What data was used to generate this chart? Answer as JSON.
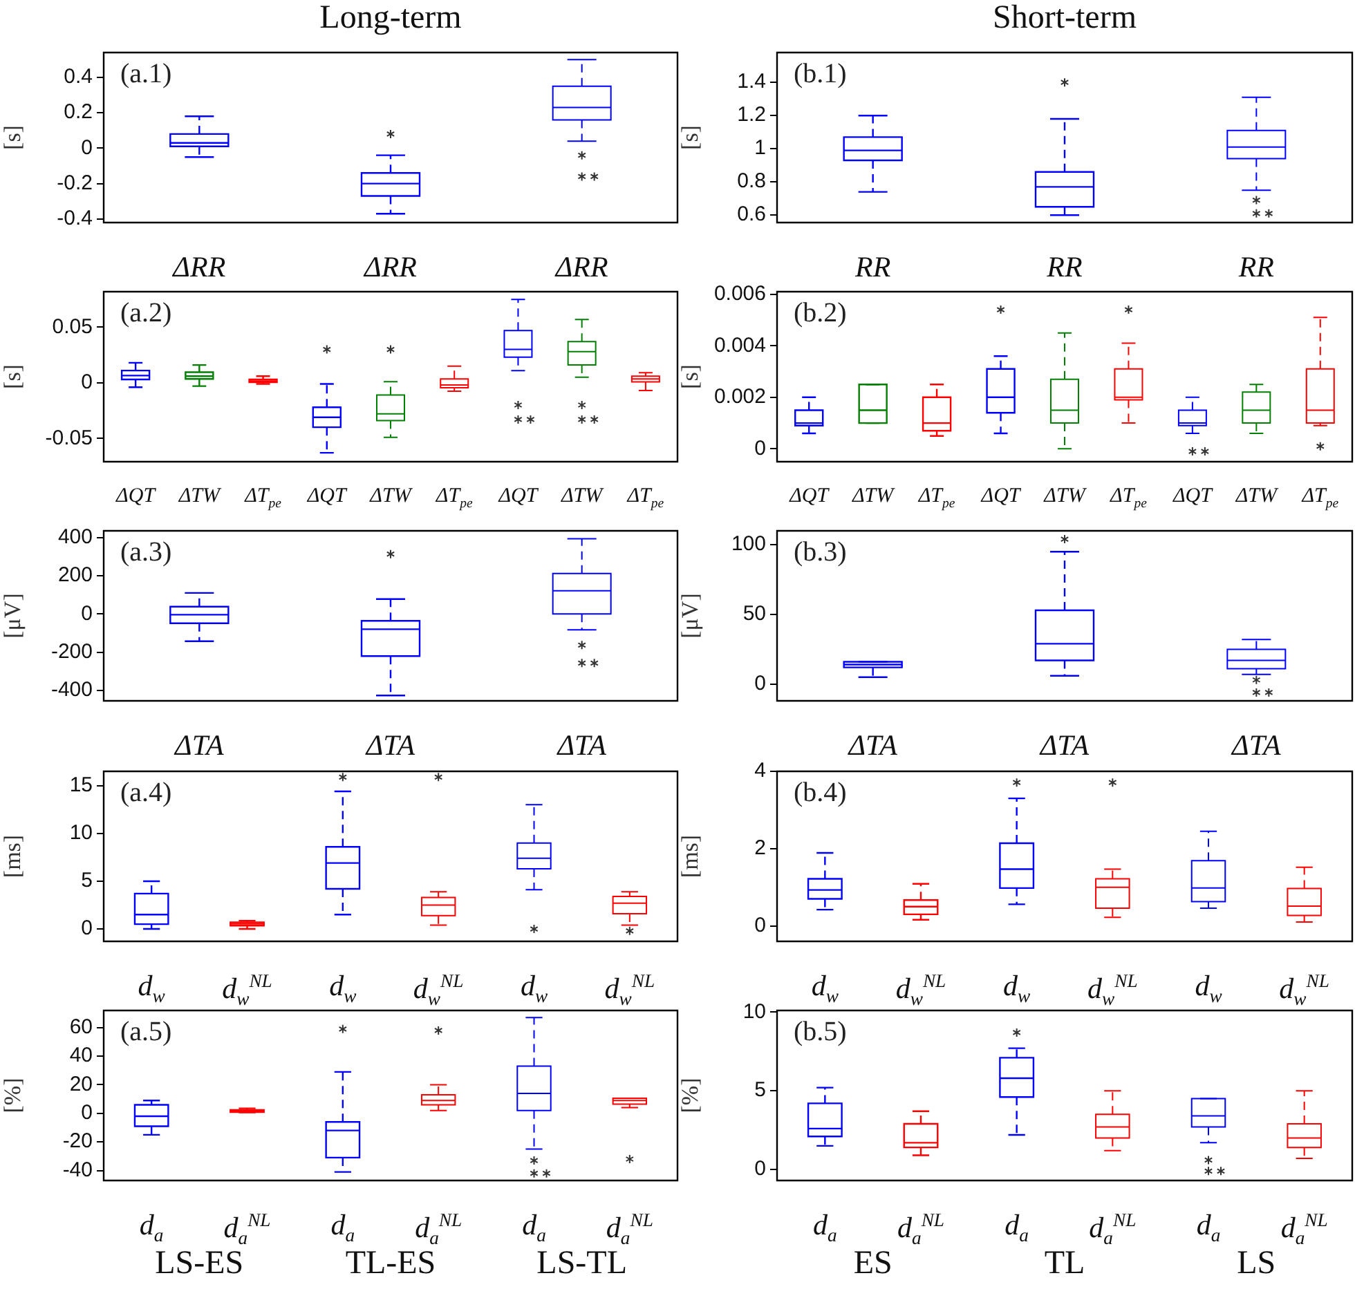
{
  "chart_data": [
    {
      "type": "box",
      "title": "Long-term",
      "ylabel": "[s]",
      "annotations": [
        "(a.1)"
      ],
      "line_style": "dashed",
      "categories": [
        "ΔRR",
        "ΔRR",
        "ΔRR"
      ],
      "colors": [
        "#0000ff",
        "#0000ff",
        "#0000ff"
      ],
      "ylim": [
        -0.42,
        0.54
      ],
      "yticks": [
        -0.4,
        -0.2,
        0,
        0.2,
        0.4
      ],
      "boxes": [
        {
          "low": -0.05,
          "q1": 0.01,
          "median": 0.03,
          "q3": 0.08,
          "high": 0.18
        },
        {
          "low": -0.37,
          "q1": -0.27,
          "median": -0.2,
          "q3": -0.14,
          "high": -0.04,
          "outliers": [
            0.08
          ]
        },
        {
          "low": 0.04,
          "q1": 0.16,
          "median": 0.23,
          "q3": 0.35,
          "high": 0.5,
          "outliers": [
            -0.04,
            -0.16,
            -0.16
          ]
        }
      ]
    },
    {
      "type": "box",
      "title": "Short-term",
      "ylabel": "[s]",
      "annotations": [
        "(b.1)"
      ],
      "line_style": "dashed",
      "categories": [
        "RR",
        "RR",
        "RR"
      ],
      "colors": [
        "#0000ff",
        "#0000ff",
        "#0000ff"
      ],
      "ylim": [
        0.555,
        1.58
      ],
      "yticks": [
        0.6,
        0.8,
        1,
        1.2,
        1.4
      ],
      "boxes": [
        {
          "low": 0.74,
          "q1": 0.93,
          "median": 0.99,
          "q3": 1.07,
          "high": 1.2
        },
        {
          "low": 0.6,
          "q1": 0.65,
          "median": 0.77,
          "q3": 0.86,
          "high": 1.18,
          "outliers": [
            1.4
          ]
        },
        {
          "low": 0.75,
          "q1": 0.94,
          "median": 1.01,
          "q3": 1.11,
          "high": 1.31,
          "outliers": [
            0.69,
            0.61,
            0.61
          ]
        }
      ]
    },
    {
      "type": "box",
      "ylabel": "[s]",
      "annotations": [
        "(a.2)"
      ],
      "line_style": "dashed",
      "categories": [
        "ΔQT",
        "ΔTW",
        "ΔT$_{pe}$",
        "ΔQT",
        "ΔTW",
        "ΔT$_{pe}$",
        "ΔQT",
        "ΔTW",
        "ΔT$_{pe}$"
      ],
      "colors": [
        "#0000ff",
        "#008000",
        "#ff0000",
        "#0000ff",
        "#008000",
        "#ff0000",
        "#0000ff",
        "#008000",
        "#ff0000"
      ],
      "ylim": [
        -0.071,
        0.082
      ],
      "yticks": [
        -0.05,
        0,
        0.05
      ],
      "boxes": [
        {
          "low": -0.004,
          "q1": 0.003,
          "median": 0.0065,
          "q3": 0.011,
          "high": 0.018
        },
        {
          "low": -0.003,
          "q1": 0.0035,
          "median": 0.006,
          "q3": 0.0095,
          "high": 0.016
        },
        {
          "low": -0.001,
          "q1": 0.0005,
          "median": 0.0015,
          "q3": 0.003,
          "high": 0.006
        },
        {
          "low": -0.063,
          "q1": -0.04,
          "median": -0.031,
          "q3": -0.022,
          "high": -0.001,
          "outliers": [
            0.03
          ]
        },
        {
          "low": -0.049,
          "q1": -0.034,
          "median": -0.028,
          "q3": -0.011,
          "high": 0.001,
          "outliers": [
            0.03
          ]
        },
        {
          "low": -0.0075,
          "q1": -0.0045,
          "median": -0.002,
          "q3": 0.0035,
          "high": 0.015
        },
        {
          "low": 0.011,
          "q1": 0.023,
          "median": 0.03,
          "q3": 0.047,
          "high": 0.075,
          "outliers": [
            -0.02,
            -0.033,
            -0.033
          ]
        },
        {
          "low": 0.005,
          "q1": 0.016,
          "median": 0.028,
          "q3": 0.037,
          "high": 0.057,
          "outliers": [
            -0.02,
            -0.033,
            -0.033
          ]
        },
        {
          "low": -0.007,
          "q1": 0.0008,
          "median": 0.0035,
          "q3": 0.006,
          "high": 0.009
        }
      ]
    },
    {
      "type": "box",
      "ylabel": "[s]",
      "annotations": [
        "(b.2)"
      ],
      "line_style": "dashed",
      "categories": [
        "ΔQT",
        "ΔTW",
        "ΔT$_{pe}$",
        "ΔQT",
        "ΔTW",
        "ΔT$_{pe}$",
        "ΔQT",
        "ΔTW",
        "ΔT$_{pe}$"
      ],
      "colors": [
        "#0000ff",
        "#008000",
        "#ff0000",
        "#0000ff",
        "#008000",
        "#ff0000",
        "#0000ff",
        "#008000",
        "#ff0000"
      ],
      "ylim": [
        -0.0005,
        0.0061
      ],
      "yticks": [
        0,
        0.002,
        0.004,
        0.006
      ],
      "boxes": [
        {
          "low": 0.0006,
          "q1": 0.0009,
          "median": 0.001,
          "q3": 0.0015,
          "high": 0.002
        },
        {
          "low": 0.001,
          "q1": 0.001,
          "median": 0.0015,
          "q3": 0.0025,
          "high": 0.0025
        },
        {
          "low": 0.0005,
          "q1": 0.0007,
          "median": 0.001,
          "q3": 0.002,
          "high": 0.0025
        },
        {
          "low": 0.0006,
          "q1": 0.0014,
          "median": 0.002,
          "q3": 0.0031,
          "high": 0.0036,
          "outliers": [
            0.0054
          ]
        },
        {
          "low": 0,
          "q1": 0.001,
          "median": 0.0015,
          "q3": 0.0027,
          "high": 0.0045
        },
        {
          "low": 0.001,
          "q1": 0.0019,
          "median": 0.002,
          "q3": 0.0031,
          "high": 0.0041,
          "outliers": [
            0.0054
          ]
        },
        {
          "low": 0.0006,
          "q1": 0.0009,
          "median": 0.001,
          "q3": 0.0015,
          "high": 0.002,
          "outliers": [
            -0.0001,
            -0.0001
          ]
        },
        {
          "low": 0.0006,
          "q1": 0.001,
          "median": 0.0015,
          "q3": 0.0022,
          "high": 0.0025
        },
        {
          "low": 0.0009,
          "q1": 0.001,
          "median": 0.0015,
          "q3": 0.0031,
          "high": 0.0051,
          "outliers": [
            0.0001
          ]
        }
      ]
    },
    {
      "type": "box",
      "ylabel": "[μV]",
      "annotations": [
        "(a.3)"
      ],
      "line_style": "dashed",
      "categories": [
        "ΔTA",
        "ΔTA",
        "ΔTA"
      ],
      "colors": [
        "#0000ff",
        "#0000ff",
        "#0000ff"
      ],
      "ylim": [
        -455,
        435
      ],
      "yticks": [
        -400,
        -200,
        0,
        200,
        400
      ],
      "boxes": [
        {
          "low": -143,
          "q1": -49,
          "median": -4,
          "q3": 38,
          "high": 110
        },
        {
          "low": -427,
          "q1": -221,
          "median": -80,
          "q3": -36,
          "high": 78,
          "outliers": [
            313
          ]
        },
        {
          "low": -83,
          "q1": 0,
          "median": 121,
          "q3": 212,
          "high": 393,
          "outliers": [
            -163,
            -257,
            -257
          ]
        }
      ]
    },
    {
      "type": "box",
      "ylabel": "[μV]",
      "annotations": [
        "(b.3)"
      ],
      "line_style": "dashed",
      "categories": [
        "ΔTA",
        "ΔTA",
        "ΔTA"
      ],
      "colors": [
        "#0000ff",
        "#0000ff",
        "#0000ff"
      ],
      "ylim": [
        -12,
        110
      ],
      "yticks": [
        0,
        50,
        100
      ],
      "boxes": [
        {
          "low": 5,
          "q1": 12,
          "median": 14,
          "q3": 16,
          "high": 16
        },
        {
          "low": 6,
          "q1": 17,
          "median": 29,
          "q3": 53,
          "high": 95,
          "outliers": [
            104
          ]
        },
        {
          "low": 7,
          "q1": 11,
          "median": 17,
          "q3": 25,
          "high": 32,
          "outliers": [
            3,
            -6,
            -6
          ]
        }
      ]
    },
    {
      "type": "box",
      "ylabel": "[ms]",
      "annotations": [
        "(a.4)"
      ],
      "line_style": "dashed",
      "categories": [
        "d$_{w}$",
        "d$_{w}$$^{NL}$",
        "d$_{w}$",
        "d$_{w}$$^{NL}$",
        "d$_{w}$",
        "d$_{w}$$^{NL}$"
      ],
      "colors": [
        "#0000ff",
        "#ff0000",
        "#0000ff",
        "#ff0000",
        "#0000ff",
        "#ff0000"
      ],
      "ylim": [
        -1.3,
        16.5
      ],
      "yticks": [
        0,
        5,
        10,
        15
      ],
      "boxes": [
        {
          "low": 0,
          "q1": 0.5,
          "median": 1.5,
          "q3": 3.7,
          "high": 5
        },
        {
          "low": 0,
          "q1": 0.35,
          "median": 0.55,
          "q3": 0.7,
          "high": 0.85
        },
        {
          "low": 1.5,
          "q1": 4.2,
          "median": 6.9,
          "q3": 8.6,
          "high": 14.4,
          "outliers": [
            15.9
          ]
        },
        {
          "low": 0.4,
          "q1": 1.4,
          "median": 2.5,
          "q3": 3.3,
          "high": 3.9,
          "outliers": [
            15.9
          ]
        },
        {
          "low": 4.1,
          "q1": 6.3,
          "median": 7.4,
          "q3": 9,
          "high": 13,
          "outliers": [
            0
          ]
        },
        {
          "low": 0.4,
          "q1": 1.6,
          "median": 2.7,
          "q3": 3.4,
          "high": 3.9,
          "outliers": [
            -0.2
          ]
        }
      ]
    },
    {
      "type": "box",
      "ylabel": "[ms]",
      "annotations": [
        "(b.4)"
      ],
      "line_style": "dashed",
      "categories": [
        "d$_{w}$",
        "d$_{w}$$^{NL}$",
        "d$_{w}$",
        "d$_{w}$$^{NL}$",
        "d$_{w}$",
        "d$_{w}$$^{NL}$"
      ],
      "colors": [
        "#0000ff",
        "#ff0000",
        "#0000ff",
        "#ff0000",
        "#0000ff",
        "#ff0000"
      ],
      "ylim": [
        -0.4,
        4
      ],
      "yticks": [
        0,
        2,
        4
      ],
      "boxes": [
        {
          "low": 0.42,
          "q1": 0.7,
          "median": 0.93,
          "q3": 1.22,
          "high": 1.89
        },
        {
          "low": 0.16,
          "q1": 0.3,
          "median": 0.5,
          "q3": 0.67,
          "high": 1.09
        },
        {
          "low": 0.56,
          "q1": 0.98,
          "median": 1.47,
          "q3": 2.14,
          "high": 3.3,
          "outliers": [
            3.71
          ]
        },
        {
          "low": 0.22,
          "q1": 0.46,
          "median": 1.0,
          "q3": 1.22,
          "high": 1.47,
          "outliers": [
            3.71
          ]
        },
        {
          "low": 0.46,
          "q1": 0.63,
          "median": 0.98,
          "q3": 1.69,
          "high": 2.45
        },
        {
          "low": 0.1,
          "q1": 0.27,
          "median": 0.51,
          "q3": 0.97,
          "high": 1.52
        }
      ]
    },
    {
      "type": "box",
      "ylabel": "[%]",
      "annotations": [
        "(a.5)",
        "LS-ES",
        "TL-ES",
        "LS-TL"
      ],
      "line_style": "dashed",
      "categories": [
        "d$_{a}$",
        "d$_{a}$$^{NL}$",
        "d$_{a}$",
        "d$_{a}$$^{NL}$",
        "d$_{a}$",
        "d$_{a}$$^{NL}$"
      ],
      "colors": [
        "#0000ff",
        "#ff0000",
        "#0000ff",
        "#ff0000",
        "#0000ff",
        "#ff0000"
      ],
      "ylim": [
        -47,
        72
      ],
      "yticks": [
        -40,
        -20,
        0,
        20,
        40,
        60
      ],
      "boxes": [
        {
          "low": -15,
          "q1": -9,
          "median": -2,
          "q3": 6,
          "high": 9
        },
        {
          "low": 0.6,
          "q1": 0.9,
          "median": 1.8,
          "q3": 2.4,
          "high": 3.5
        },
        {
          "low": -41,
          "q1": -31,
          "median": -12,
          "q3": -6,
          "high": 29,
          "outliers": [
            59
          ]
        },
        {
          "low": 2,
          "q1": 6,
          "median": 9,
          "q3": 13,
          "high": 20,
          "outliers": [
            58
          ]
        },
        {
          "low": -25,
          "q1": 2,
          "median": 14,
          "q3": 33,
          "high": 67,
          "outliers": [
            -33,
            -42,
            -42
          ]
        },
        {
          "low": 4,
          "q1": 6.5,
          "median": 9,
          "q3": 10.6,
          "high": 10.6,
          "outliers": [
            -32
          ]
        }
      ]
    },
    {
      "type": "box",
      "ylabel": "[%]",
      "annotations": [
        "(b.5)",
        "ES",
        "TL",
        "LS"
      ],
      "line_style": "dashed",
      "categories": [
        "d$_{a}$",
        "d$_{a}$$^{NL}$",
        "d$_{a}$",
        "d$_{a}$$^{NL}$",
        "d$_{a}$",
        "d$_{a}$$^{NL}$"
      ],
      "colors": [
        "#0000ff",
        "#ff0000",
        "#0000ff",
        "#ff0000",
        "#0000ff",
        "#ff0000"
      ],
      "ylim": [
        -0.7,
        10.1
      ],
      "yticks": [
        0,
        5,
        10
      ],
      "boxes": [
        {
          "low": 1.5,
          "q1": 2.1,
          "median": 2.6,
          "q3": 4.2,
          "high": 5.2
        },
        {
          "low": 0.9,
          "q1": 1.4,
          "median": 1.7,
          "q3": 2.9,
          "high": 3.7
        },
        {
          "low": 2.2,
          "q1": 4.6,
          "median": 5.8,
          "q3": 7.1,
          "high": 7.7,
          "outliers": [
            8.7
          ]
        },
        {
          "low": 1.2,
          "q1": 2,
          "median": 2.7,
          "q3": 3.5,
          "high": 5
        },
        {
          "low": 1.7,
          "q1": 2.7,
          "median": 3.4,
          "q3": 4.5,
          "high": 4.5,
          "outliers": [
            0.6,
            -0.1,
            -0.1
          ]
        },
        {
          "low": 0.7,
          "q1": 1.4,
          "median": 2,
          "q3": 2.9,
          "high": 5
        }
      ]
    }
  ]
}
